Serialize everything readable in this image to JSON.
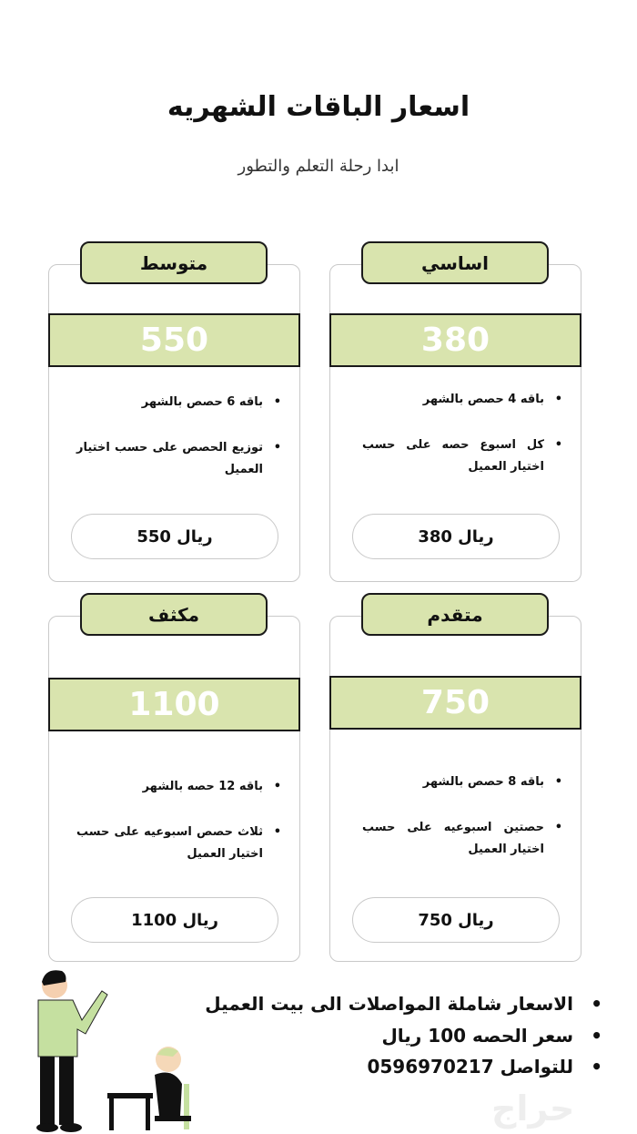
{
  "header": {
    "title": "اسعار الباقات الشهريه",
    "subtitle": "ابدا رحلة التعلم والتطور"
  },
  "colors": {
    "accent": "#d9e4ae",
    "border": "#1a1a1a"
  },
  "packages": [
    {
      "name": "اساسي",
      "price": "380",
      "features": [
        "باقه 4 حصص بالشهر",
        "كل اسبوع حصه على حسب اختيار العميل"
      ],
      "price_label": "ريال 380"
    },
    {
      "name": "متوسط",
      "price": "550",
      "features": [
        "باقه 6 حصص بالشهر",
        "توزيع الحصص على حسب اختيار العميل"
      ],
      "price_label": "ريال 550"
    },
    {
      "name": "متقدم",
      "price": "750",
      "features": [
        "باقه 8 حصص بالشهر",
        "حصتين اسبوعيه على حسب اختيار العميل"
      ],
      "price_label": "ريال 750"
    },
    {
      "name": "مكثف",
      "price": "1100",
      "features": [
        "باقه 12 حصه بالشهر",
        "ثلاث حصص اسبوعيه على حسب اختيار العميل"
      ],
      "price_label": "ريال 1100"
    }
  ],
  "notes": [
    "الاسعار شاملة المواصلات الى بيت العميل",
    "سعر الحصه 100 ريال",
    "للتواصل 0596970217"
  ],
  "watermark": "حراج"
}
